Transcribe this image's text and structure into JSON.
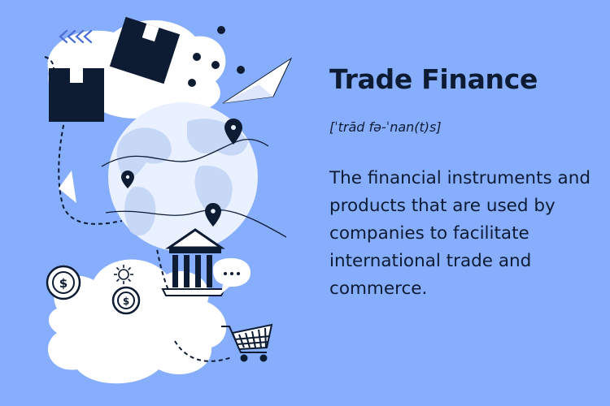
{
  "title": "Trade Finance",
  "pronunciation": "[ˈtrād fə-ˈnan(t)s]",
  "definition": "The financial instruments and products that are used by companies to facilitate international trade and commerce.",
  "colors": {
    "background": "#86aefc",
    "ink": "#0d1b33",
    "cloud": "#ffffff",
    "globe_ocean": "#e9f0ff",
    "globe_land": "#c7d8f7"
  },
  "icons": [
    "chevrons-icon",
    "package-box-icon",
    "paper-plane-icon",
    "globe-icon",
    "map-pin-icon",
    "bank-building-icon",
    "speech-bubble-icon",
    "dollar-coin-icon",
    "sun-icon",
    "shopping-cart-icon"
  ]
}
